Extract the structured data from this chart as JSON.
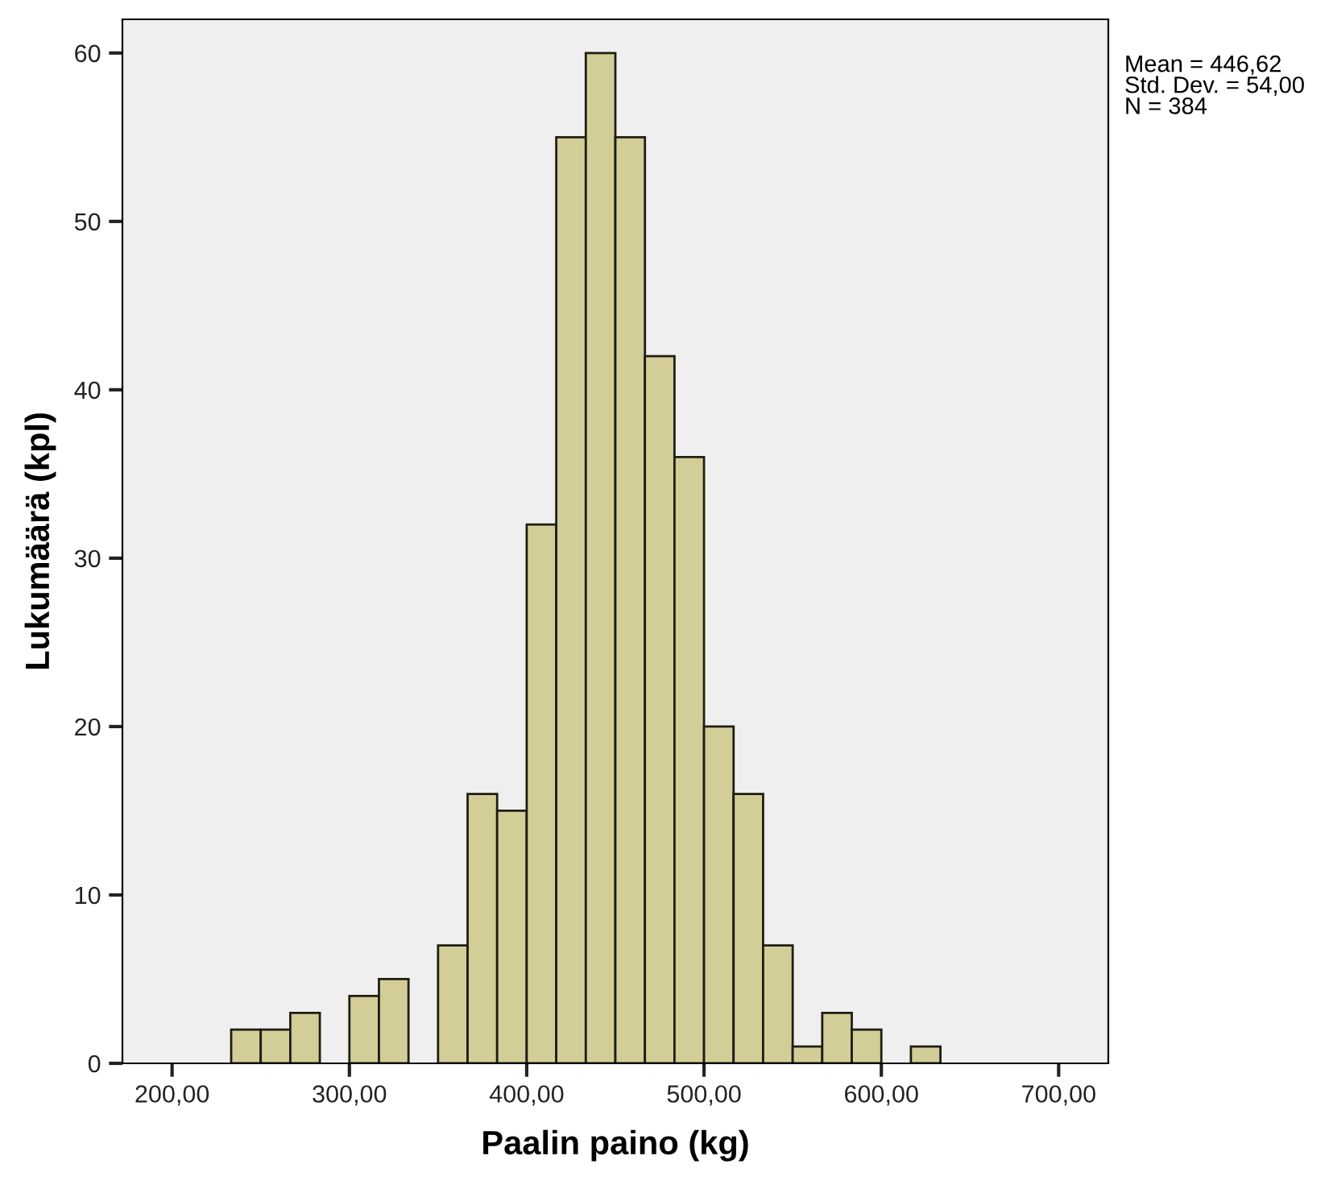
{
  "chart_data": {
    "type": "histogram",
    "xlabel": "Paalin paino (kg)",
    "ylabel": "Lukumäärä (kpl)",
    "bins": [
      233.33,
      250,
      266.67,
      283.33,
      300,
      316.67,
      333.33,
      350,
      366.67,
      383.33,
      400,
      416.67,
      433.33,
      450,
      466.67,
      483.33,
      500,
      516.67,
      533.33,
      550,
      566.67,
      583.33,
      600,
      616.67,
      633.33
    ],
    "values": [
      2,
      2,
      3,
      0,
      4,
      5,
      0,
      7,
      16,
      15,
      32,
      55,
      60,
      55,
      42,
      36,
      20,
      16,
      7,
      1,
      3,
      2,
      0,
      1
    ],
    "color": "#d3ce97",
    "xlim": [
      172,
      728
    ],
    "ylim": [
      0,
      62
    ],
    "xticks": [
      {
        "value": 200,
        "label": "200,00"
      },
      {
        "value": 300,
        "label": "300,00"
      },
      {
        "value": 400,
        "label": "400,00"
      },
      {
        "value": 500,
        "label": "500,00"
      },
      {
        "value": 600,
        "label": "600,00"
      },
      {
        "value": 700,
        "label": "700,00"
      }
    ],
    "yticks": [
      0,
      10,
      20,
      30,
      40,
      50,
      60
    ],
    "grid": false,
    "legend": false,
    "annotations": [
      "Mean = 446,62\nStd. Dev. = 54,00\nN = 384"
    ]
  }
}
